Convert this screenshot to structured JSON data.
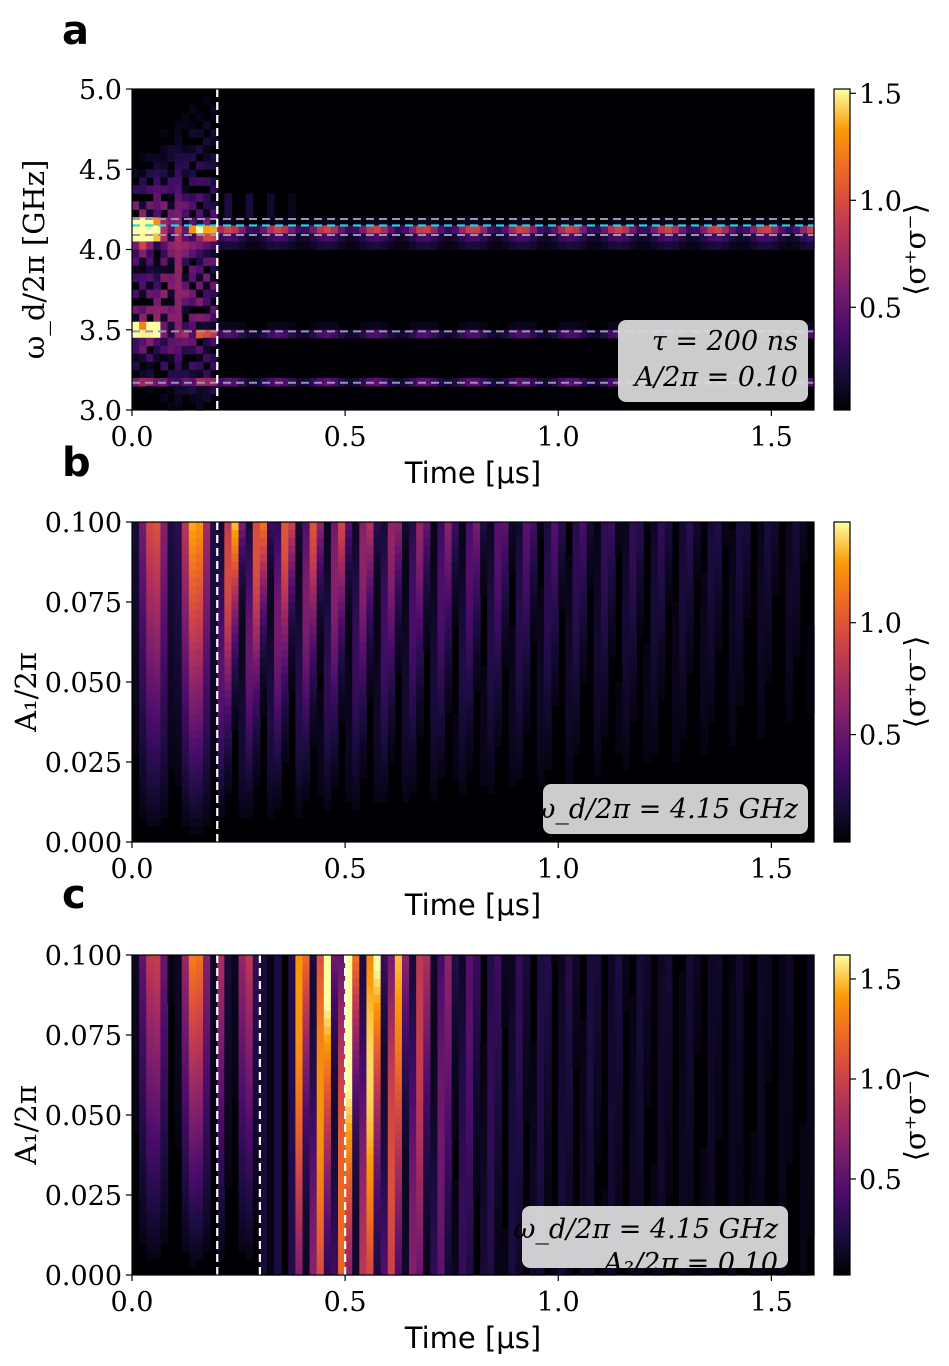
{
  "colors": {
    "dashed_vertical": "#ffffff",
    "dashed_grey": "#9a93b4",
    "dashed_cyan": "#20d8e8",
    "box_bg": "#dcdcdc"
  },
  "chart_data": [
    {
      "panel": "a",
      "type": "heatmap",
      "colormap": "inferno",
      "xlabel": "Time [μs]",
      "ylabel": "ω_d/2π [GHz]",
      "xlim": [
        0.0,
        1.6
      ],
      "ylim": [
        3.0,
        5.0
      ],
      "xticks": [
        0.0,
        0.5,
        1.0,
        1.5
      ],
      "xtick_labels": [
        "0.0",
        "0.5",
        "1.0",
        "1.5"
      ],
      "yticks": [
        3.0,
        3.5,
        4.0,
        4.5,
        5.0
      ],
      "ytick_labels": [
        "3.0",
        "3.5",
        "4.0",
        "4.5",
        "5.0"
      ],
      "colorbar": {
        "label": "⟨σ⁺σ⁻⟩",
        "range": [
          0.02,
          1.52
        ],
        "ticks": [
          0.5,
          1.0,
          1.5
        ],
        "tick_labels": [
          "0.5",
          "1.0",
          "1.5"
        ]
      },
      "vlines": [
        0.2
      ],
      "hlines_grey": [
        3.17,
        3.49,
        4.09,
        4.19
      ],
      "hline_cyan": 4.15,
      "annotation": [
        "τ = 200 ns",
        "A/2π = 0.10"
      ]
    },
    {
      "panel": "b",
      "type": "heatmap",
      "colormap": "inferno",
      "xlabel": "Time [μs]",
      "ylabel": "A₁/2π",
      "xlim": [
        0.0,
        1.6
      ],
      "ylim": [
        0.0,
        0.1
      ],
      "xticks": [
        0.0,
        0.5,
        1.0,
        1.5
      ],
      "xtick_labels": [
        "0.0",
        "0.5",
        "1.0",
        "1.5"
      ],
      "yticks": [
        0.0,
        0.025,
        0.05,
        0.075,
        0.1
      ],
      "ytick_labels": [
        "0.000",
        "0.025",
        "0.050",
        "0.075",
        "0.100"
      ],
      "colorbar": {
        "label": "⟨σ⁺σ⁻⟩",
        "range": [
          0.02,
          1.45
        ],
        "ticks": [
          0.5,
          1.0
        ],
        "tick_labels": [
          "0.5",
          "1.0"
        ]
      },
      "vlines": [
        0.2
      ],
      "annotation": [
        "ω_d/2π = 4.15 GHz"
      ]
    },
    {
      "panel": "c",
      "type": "heatmap",
      "colormap": "inferno",
      "xlabel": "Time [μs]",
      "ylabel": "A₁/2π",
      "xlim": [
        0.0,
        1.6
      ],
      "ylim": [
        0.0,
        0.1
      ],
      "xticks": [
        0.0,
        0.5,
        1.0,
        1.5
      ],
      "xtick_labels": [
        "0.0",
        "0.5",
        "1.0",
        "1.5"
      ],
      "yticks": [
        0.0,
        0.025,
        0.05,
        0.075,
        0.1
      ],
      "ytick_labels": [
        "0.000",
        "0.025",
        "0.050",
        "0.075",
        "0.100"
      ],
      "colorbar": {
        "label": "⟨σ⁺σ⁻⟩",
        "range": [
          0.02,
          1.62
        ],
        "ticks": [
          0.5,
          1.0,
          1.5
        ],
        "tick_labels": [
          "0.5",
          "1.0",
          "1.5"
        ]
      },
      "vlines": [
        0.2,
        0.3,
        0.5
      ],
      "annotation": [
        "ω_d/2π = 4.15 GHz",
        "A₂/2π = 0.10"
      ]
    }
  ]
}
